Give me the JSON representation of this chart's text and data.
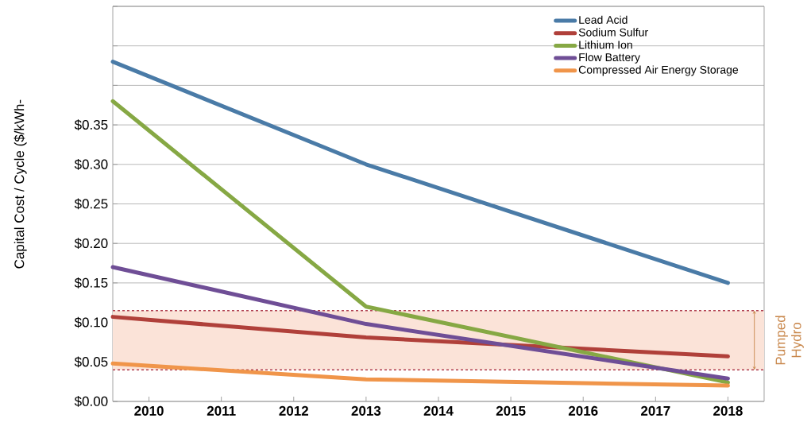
{
  "chart_data": {
    "type": "line",
    "ylabel": "Capital Cost / Cycle  ($/kWh-",
    "xlim": [
      2009.5,
      2018.5
    ],
    "xticks": [
      2010,
      2011,
      2012,
      2013,
      2014,
      2015,
      2016,
      2017,
      2018
    ],
    "ylim": [
      0,
      0.5
    ],
    "yticks": [
      {
        "value": 0,
        "label": "$0.00"
      },
      {
        "value": 0.05,
        "label": "$0.05"
      },
      {
        "value": 0.1,
        "label": "$0.10"
      },
      {
        "value": 0.15,
        "label": "$0.15"
      },
      {
        "value": 0.2,
        "label": "$0.20"
      },
      {
        "value": 0.25,
        "label": "$0.25"
      },
      {
        "value": 0.3,
        "label": "$0.30"
      },
      {
        "value": 0.35,
        "label": "$0.35"
      },
      {
        "value": 0.4,
        "label": null
      },
      {
        "value": 0.45,
        "label": null
      },
      {
        "value": 0.5,
        "label": null
      }
    ],
    "grid": "y",
    "legend": "top right",
    "marker": "none",
    "line_style": "solid",
    "series": [
      {
        "name": "Lead Acid",
        "color": "#4a7ba7",
        "x": [
          2009.5,
          2013,
          2018
        ],
        "values": [
          0.43,
          0.3,
          0.15
        ]
      },
      {
        "name": "Sodium Sulfur",
        "color": "#b0403a",
        "x": [
          2009.5,
          2013,
          2018
        ],
        "values": [
          0.107,
          0.081,
          0.057
        ]
      },
      {
        "name": "Lithium Ion",
        "color": "#86a844",
        "x": [
          2009.5,
          2013,
          2018
        ],
        "values": [
          0.38,
          0.12,
          0.024
        ]
      },
      {
        "name": "Flow Battery",
        "color": "#6f4e96",
        "x": [
          2009.5,
          2013,
          2018
        ],
        "values": [
          0.17,
          0.098,
          0.029
        ]
      },
      {
        "name": "Compressed Air Energy Storage",
        "color": "#f0954a",
        "x": [
          2009.5,
          2013,
          2018
        ],
        "values": [
          0.048,
          0.028,
          0.02
        ]
      }
    ],
    "bands": [
      {
        "axis": "y",
        "from": 0.04,
        "to": 0.115,
        "label": "Pumped Hydro",
        "color": "#fbe3d8"
      }
    ],
    "ref_lines": [
      {
        "axis": "y",
        "value": 0.04,
        "color": "#b04050",
        "line_style": "dashed"
      },
      {
        "axis": "y",
        "value": 0.115,
        "color": "#b04050",
        "line_style": "dashed"
      }
    ]
  }
}
